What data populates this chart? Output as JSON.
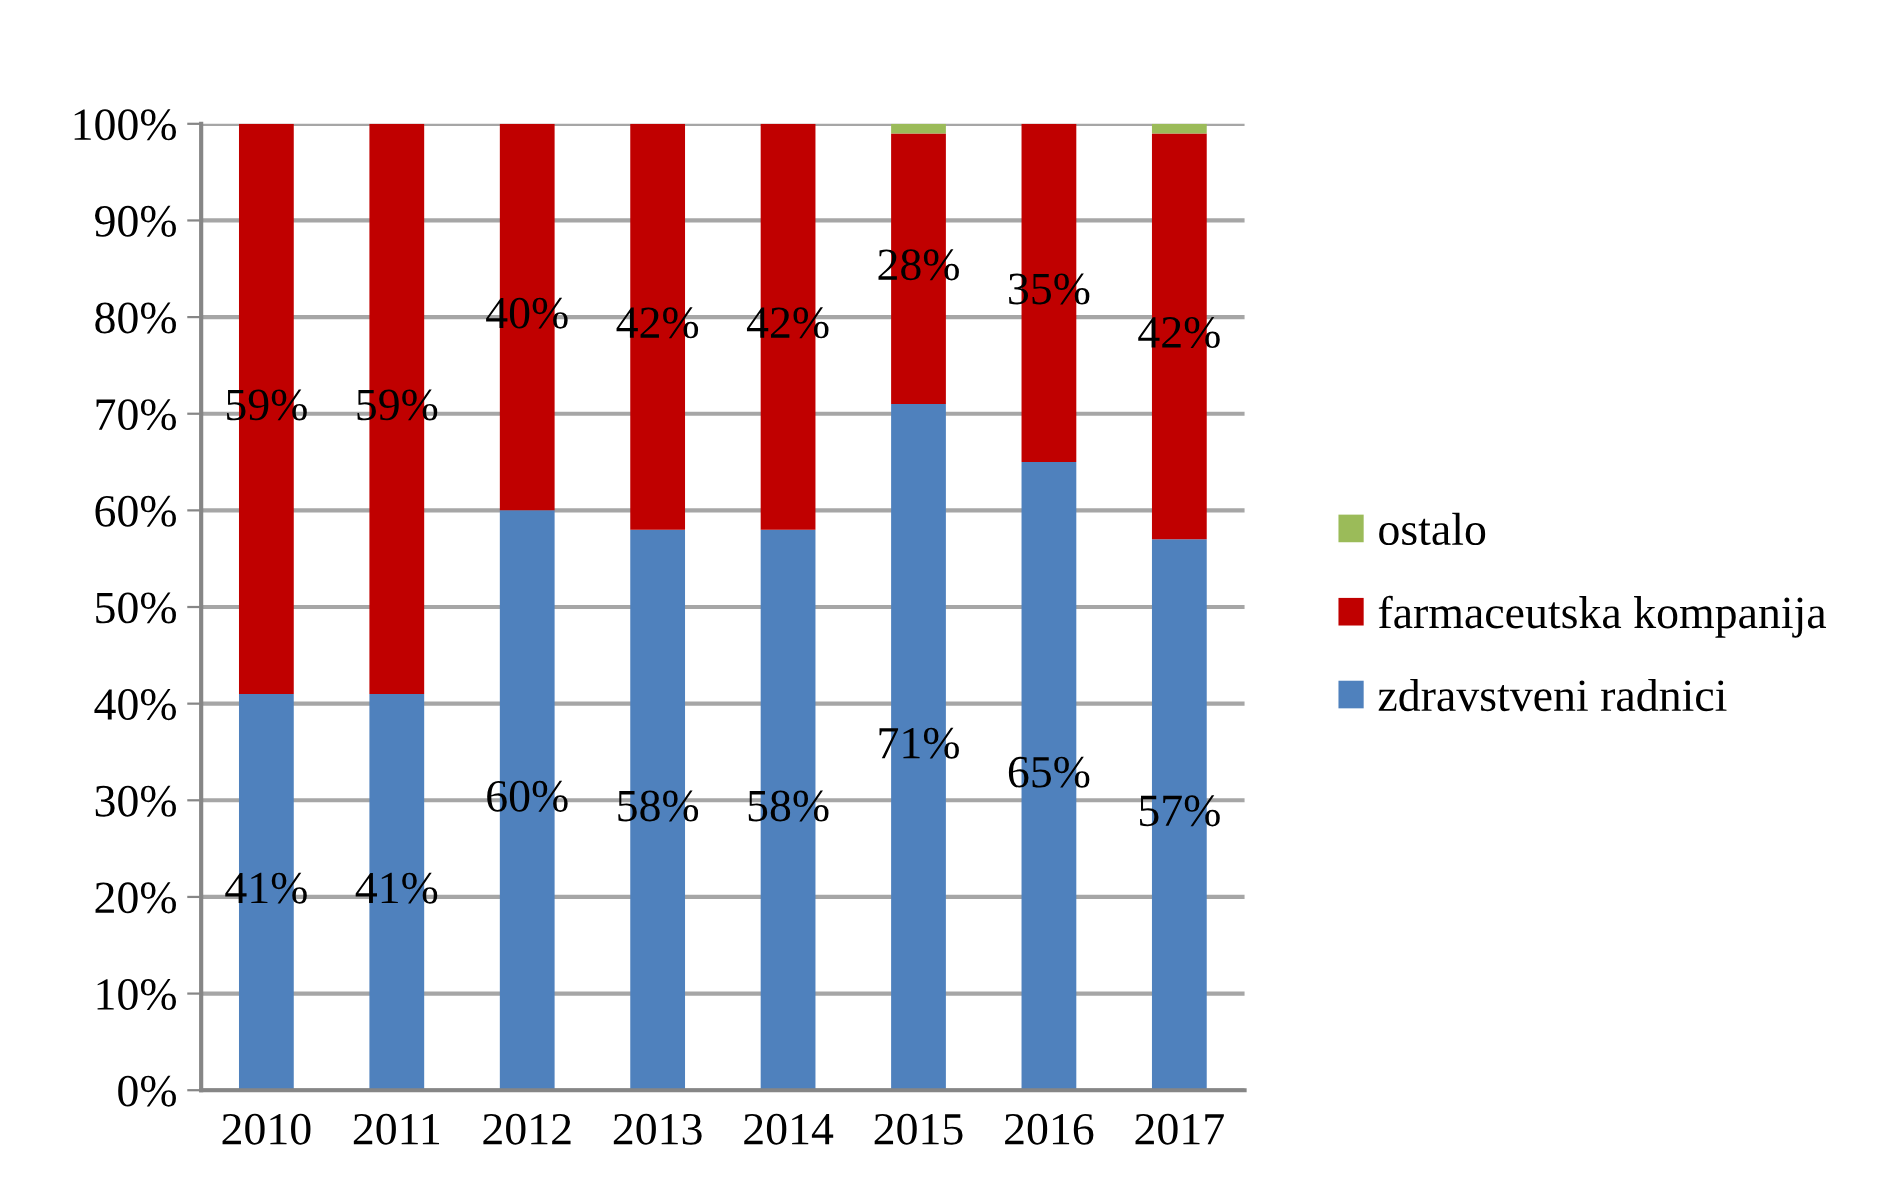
{
  "chart_data": {
    "type": "bar",
    "stacked": true,
    "categories": [
      "2010",
      "2011",
      "2012",
      "2013",
      "2014",
      "2015",
      "2016",
      "2017"
    ],
    "series": [
      {
        "name": "zdravstveni radnici",
        "color": "#4f81bd",
        "values": [
          41,
          41,
          60,
          58,
          58,
          71,
          65,
          57
        ],
        "value_labels": [
          "41%",
          "41%",
          "60%",
          "58%",
          "58%",
          "71%",
          "65%",
          "57%"
        ]
      },
      {
        "name": "farmaceutska kompanija",
        "color": "#c00000",
        "values": [
          59,
          59,
          40,
          42,
          42,
          28,
          35,
          42
        ],
        "value_labels": [
          "59%",
          "59%",
          "40%",
          "42%",
          "42%",
          "28%",
          "35%",
          "42%"
        ]
      },
      {
        "name": "ostalo",
        "color": "#9bbb59",
        "values": [
          null,
          null,
          null,
          null,
          null,
          1,
          null,
          1
        ]
      }
    ],
    "ylim": [
      0,
      100
    ],
    "yticks": [
      {
        "value": 0,
        "label": "0%"
      },
      {
        "value": 10,
        "label": "10%"
      },
      {
        "value": 20,
        "label": "20%"
      },
      {
        "value": 30,
        "label": "30%"
      },
      {
        "value": 40,
        "label": "40%"
      },
      {
        "value": 50,
        "label": "50%"
      },
      {
        "value": 60,
        "label": "60%"
      },
      {
        "value": 70,
        "label": "70%"
      },
      {
        "value": 80,
        "label": "80%"
      },
      {
        "value": 90,
        "label": "90%"
      },
      {
        "value": 100,
        "label": "100%"
      }
    ],
    "grid": "y",
    "legend": "right"
  }
}
